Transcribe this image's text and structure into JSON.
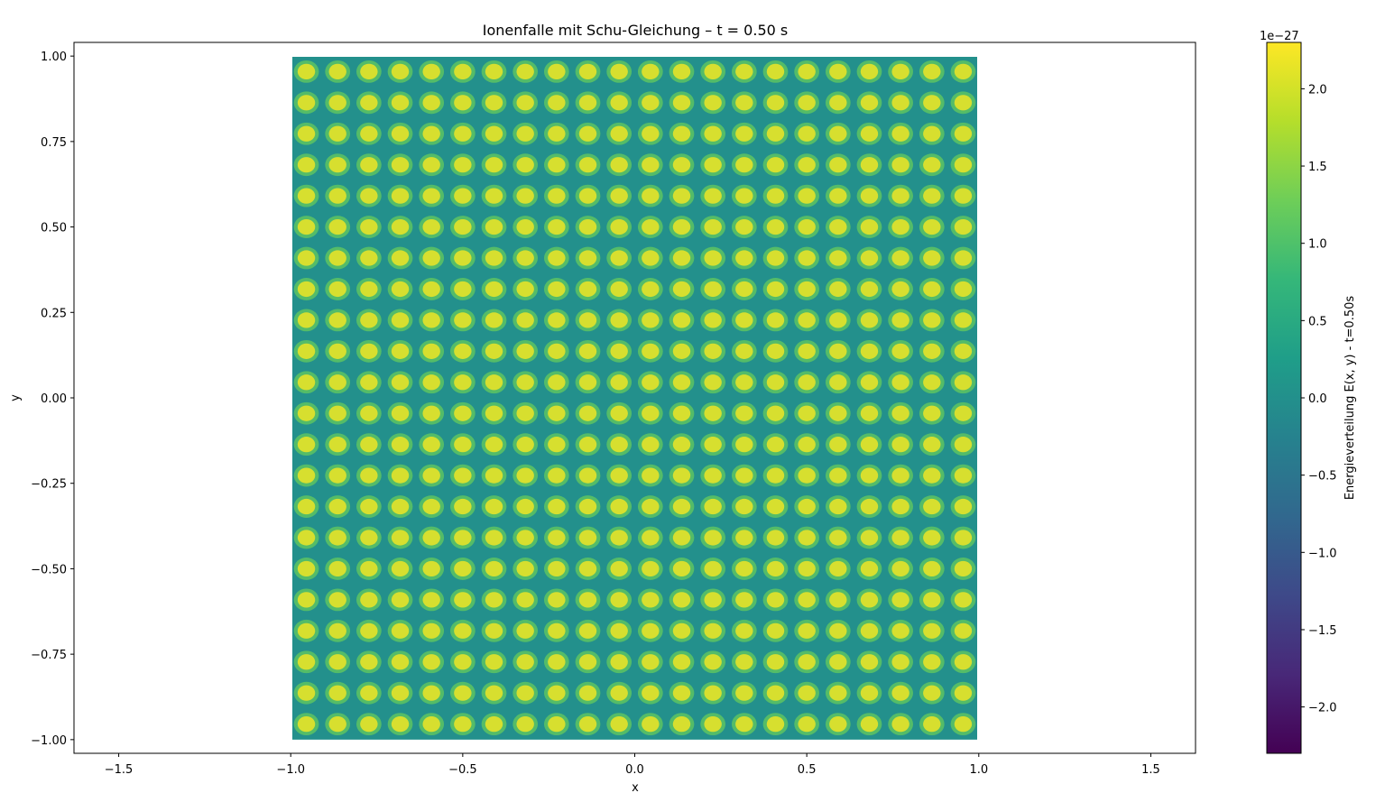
{
  "chart_data": {
    "type": "heatmap",
    "title": "Ionenfalle mit Schu-Gleichung – t = 0.50 s",
    "xlabel": "x",
    "ylabel": "y",
    "xlim": [
      -1.63,
      1.63
    ],
    "ylim": [
      -1.04,
      1.04
    ],
    "x_ticks": [
      -1.5,
      -1.0,
      -0.5,
      0.0,
      0.5,
      1.0,
      1.5
    ],
    "x_tick_labels": [
      "−1.5",
      "−1.0",
      "−0.5",
      "0.0",
      "0.5",
      "1.0",
      "1.5"
    ],
    "y_ticks": [
      -1.0,
      -0.75,
      -0.5,
      -0.25,
      0.0,
      0.25,
      0.5,
      0.75,
      1.0
    ],
    "y_tick_labels": [
      "−1.00",
      "−0.75",
      "−0.50",
      "−0.25",
      "0.00",
      "0.25",
      "0.50",
      "0.75",
      "1.00"
    ],
    "data_extent": {
      "x": [
        -1.0,
        1.0
      ],
      "y": [
        -1.0,
        1.0
      ]
    },
    "pattern": {
      "cells_x": 22,
      "cells_y": 22,
      "background_value": 0.0,
      "peak_value": 2.2e-27
    },
    "colorbar": {
      "label": "Energieverteilung E(x, y) - t=0.50s",
      "offset_text": "1e−27",
      "range": [
        -2.3,
        2.3
      ],
      "ticks": [
        -2.0,
        -1.5,
        -1.0,
        -0.5,
        0.0,
        0.5,
        1.0,
        1.5,
        2.0
      ],
      "tick_labels": [
        "−2.0",
        "−1.5",
        "−1.0",
        "−0.5",
        "0.0",
        "0.5",
        "1.0",
        "1.5",
        "2.0"
      ],
      "colormap": "viridis",
      "colors": [
        "#440154",
        "#482878",
        "#3e4989",
        "#31688e",
        "#26828e",
        "#1f9e89",
        "#35b779",
        "#6ece58",
        "#b5de2b",
        "#fde725"
      ]
    },
    "grid": false,
    "legend": "none"
  }
}
